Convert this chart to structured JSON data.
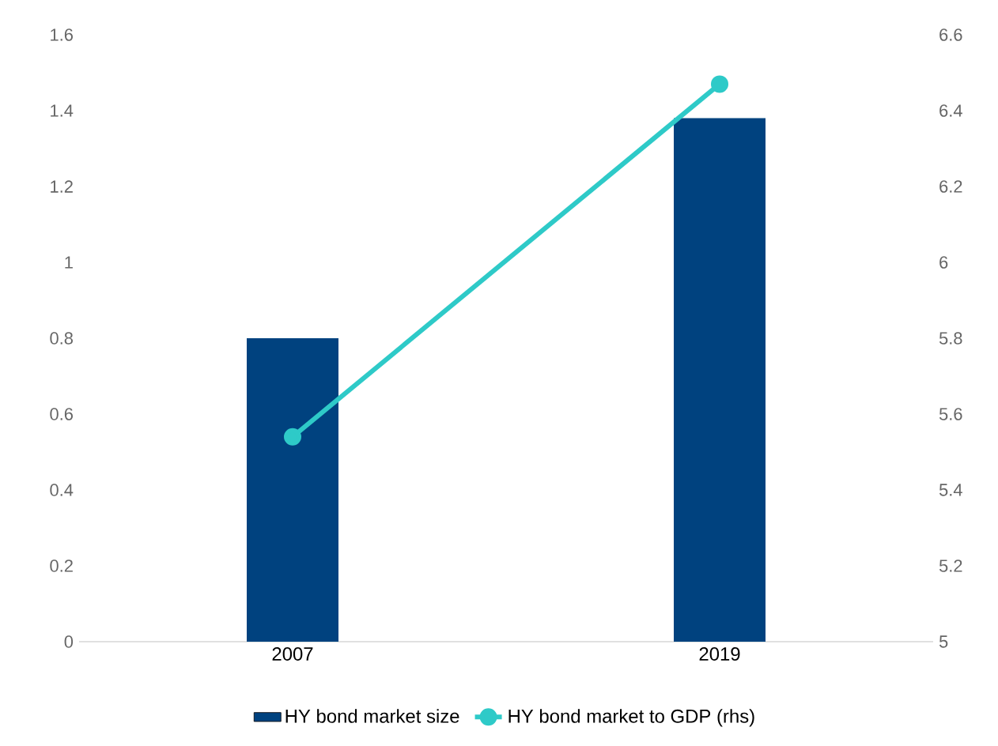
{
  "chart_data": {
    "type": "bar",
    "categories": [
      "2007",
      "2019"
    ],
    "series": [
      {
        "name": "HY bond market size",
        "color": "#00427f",
        "values": [
          0.8,
          1.38
        ]
      },
      {
        "name": "HY bond market to GDP (rhs)",
        "type": "line",
        "axis": "y2",
        "color": "#2ecac8",
        "marker": "circle",
        "values": [
          5.54,
          6.47
        ]
      }
    ],
    "ylim": [
      0,
      1.6
    ],
    "yticks": [
      0,
      0.2,
      0.4,
      0.6,
      0.8,
      1,
      1.2,
      1.4,
      1.6
    ],
    "y2lim": [
      5,
      6.6
    ],
    "y2ticks": [
      5,
      5.2,
      5.4,
      5.6,
      5.8,
      6,
      6.2,
      6.4,
      6.6
    ],
    "legend": "bottom"
  }
}
